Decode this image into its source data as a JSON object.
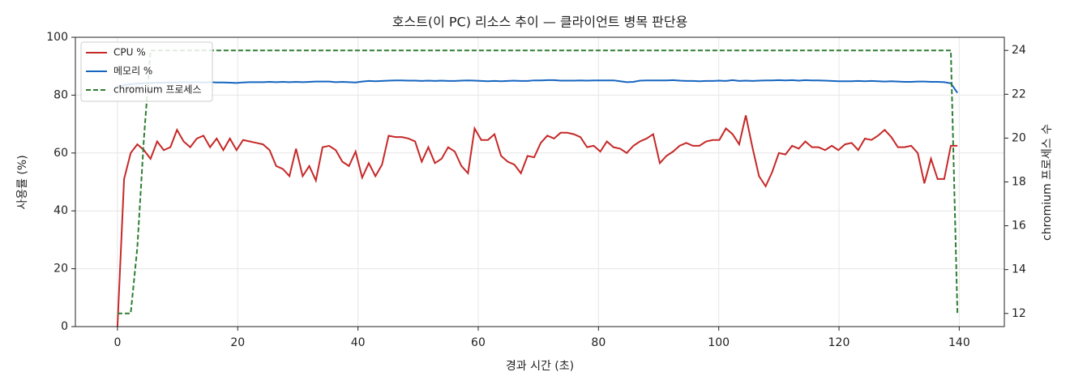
{
  "chart_data": {
    "type": "line",
    "title": "호스트(이 PC) 리소스 추이 — 클라이언트 병목 판단용",
    "x_label": "경과 시간 (초)",
    "y_label": "사용률 (%)",
    "y2_label": "chromium 프로세스 수",
    "x": [
      0,
      1.1,
      2.2,
      3.3,
      4.4,
      5.5,
      6.6,
      7.7,
      8.8,
      9.9,
      11,
      12.1,
      13.2,
      14.3,
      15.4,
      16.5,
      17.6,
      18.7,
      19.8,
      20.9,
      22,
      23.1,
      24.2,
      25.3,
      26.4,
      27.5,
      28.6,
      29.7,
      30.8,
      31.9,
      33,
      34.1,
      35.2,
      36.3,
      37.4,
      38.5,
      39.6,
      40.7,
      41.8,
      42.9,
      44,
      45.1,
      46.2,
      47.3,
      48.4,
      49.5,
      50.6,
      51.7,
      52.8,
      53.9,
      55,
      56.1,
      57.2,
      58.3,
      59.4,
      60.5,
      61.6,
      62.7,
      63.8,
      64.9,
      66,
      67.1,
      68.2,
      69.3,
      70.4,
      71.5,
      72.6,
      73.7,
      74.8,
      75.9,
      77,
      78.1,
      79.2,
      80.3,
      81.4,
      82.5,
      83.6,
      84.7,
      85.8,
      86.9,
      88,
      89.1,
      90.2,
      91.3,
      92.4,
      93.5,
      94.6,
      95.7,
      96.8,
      97.9,
      99,
      100.1,
      101.2,
      102.3,
      103.4,
      104.5,
      105.6,
      106.7,
      107.8,
      108.9,
      110,
      111.1,
      112.2,
      113.3,
      114.4,
      115.5,
      116.6,
      117.7,
      118.8,
      119.9,
      121,
      122.1,
      123.2,
      124.3,
      125.4,
      126.5,
      127.6,
      128.7,
      129.8,
      130.9,
      132,
      133.1,
      134.2,
      135.3,
      136.4,
      137.5,
      138.6,
      139.7
    ],
    "series": [
      {
        "name": "CPU %",
        "color": "#c62828",
        "dashed": false,
        "axis": "y",
        "values": [
          0,
          51,
          60,
          63,
          61,
          58,
          64,
          61,
          62,
          68,
          64,
          62,
          65,
          66,
          62,
          65,
          61,
          65,
          61,
          64.5,
          64,
          63.5,
          63,
          61,
          55.5,
          54.5,
          52,
          61.5,
          52,
          55.5,
          50.5,
          62,
          62.5,
          61,
          57,
          55.5,
          60.5,
          51.5,
          56.5,
          52,
          56,
          66,
          65.5,
          65.5,
          65,
          64,
          57,
          62,
          56.5,
          58,
          62,
          60.5,
          55.5,
          53,
          68.5,
          64.5,
          64.5,
          66.5,
          59,
          57,
          56,
          53,
          59,
          58.5,
          63.5,
          66,
          65,
          67,
          67,
          66.5,
          65.5,
          62,
          62.5,
          60.5,
          64,
          62,
          61.5,
          60,
          62.5,
          64,
          65,
          66.5,
          56.5,
          59,
          60.5,
          62.5,
          63.5,
          62.5,
          62.5,
          64,
          64.5,
          64.5,
          68.5,
          66.5,
          63,
          73,
          62,
          52,
          48.5,
          53.5,
          60,
          59.5,
          62.5,
          61.5,
          64,
          62,
          62,
          61,
          62.5,
          61,
          63,
          63.5,
          61,
          65,
          64.5,
          66,
          68,
          65.5,
          62,
          62,
          62.5,
          60,
          49.5,
          58,
          51,
          51,
          62.5,
          62.5
        ]
      },
      {
        "name": "메모리 %",
        "color": "#1565c0",
        "dashed": false,
        "axis": "y",
        "values": [
          83,
          83.5,
          83.8,
          84,
          84.1,
          84.2,
          84.3,
          84.3,
          84.4,
          84.4,
          84.5,
          84.4,
          84.5,
          84.4,
          84.5,
          84.4,
          84.4,
          84.3,
          84.2,
          84.4,
          84.5,
          84.5,
          84.5,
          84.6,
          84.5,
          84.6,
          84.5,
          84.6,
          84.5,
          84.6,
          84.7,
          84.7,
          84.7,
          84.5,
          84.6,
          84.5,
          84.4,
          84.7,
          84.9,
          84.8,
          84.9,
          85,
          85.1,
          85.1,
          85,
          85,
          84.9,
          85,
          84.9,
          85,
          84.9,
          84.9,
          85,
          85.1,
          85,
          84.9,
          84.8,
          84.9,
          84.8,
          84.9,
          85,
          84.9,
          84.9,
          85.1,
          85.1,
          85.2,
          85.2,
          85,
          85,
          85,
          85.1,
          85,
          85.1,
          85.1,
          85.1,
          85.1,
          84.8,
          84.5,
          84.6,
          85,
          85.1,
          85.1,
          85.1,
          85.1,
          85.2,
          85,
          84.9,
          84.9,
          84.8,
          84.9,
          84.9,
          85,
          84.9,
          85.2,
          84.9,
          85,
          84.9,
          85,
          85.1,
          85.1,
          85.2,
          85.1,
          85.2,
          85,
          85.2,
          85.1,
          85.1,
          85,
          84.9,
          84.8,
          84.8,
          84.8,
          84.9,
          84.8,
          84.9,
          84.8,
          84.7,
          84.8,
          84.7,
          84.6,
          84.6,
          84.7,
          84.7,
          84.6,
          84.6,
          84.5,
          84.1,
          80.8
        ]
      },
      {
        "name": "chromium 프로세스",
        "color": "#2e7d32",
        "dashed": true,
        "axis": "y2",
        "values": [
          12,
          12,
          12,
          15,
          20,
          24,
          24,
          24,
          24,
          24,
          24,
          24,
          24,
          24,
          24,
          24,
          24,
          24,
          24,
          24,
          24,
          24,
          24,
          24,
          24,
          24,
          24,
          24,
          24,
          24,
          24,
          24,
          24,
          24,
          24,
          24,
          24,
          24,
          24,
          24,
          24,
          24,
          24,
          24,
          24,
          24,
          24,
          24,
          24,
          24,
          24,
          24,
          24,
          24,
          24,
          24,
          24,
          24,
          24,
          24,
          24,
          24,
          24,
          24,
          24,
          24,
          24,
          24,
          24,
          24,
          24,
          24,
          24,
          24,
          24,
          24,
          24,
          24,
          24,
          24,
          24,
          24,
          24,
          24,
          24,
          24,
          24,
          24,
          24,
          24,
          24,
          24,
          24,
          24,
          24,
          24,
          24,
          24,
          24,
          24,
          24,
          24,
          24,
          24,
          24,
          24,
          24,
          24,
          24,
          24,
          24,
          24,
          24,
          24,
          24,
          24,
          24,
          24,
          24,
          24,
          24,
          24,
          24,
          24,
          24,
          24,
          24,
          12
        ]
      }
    ],
    "xlim": [
      -7,
      147.5
    ],
    "xticks": [
      0,
      20,
      40,
      60,
      80,
      100,
      120,
      140
    ],
    "ylim": [
      0,
      100
    ],
    "yticks": [
      0,
      20,
      40,
      60,
      80,
      100
    ],
    "y2lim": [
      11.4,
      24.6
    ],
    "y2ticks": [
      12,
      14,
      16,
      18,
      20,
      22,
      24
    ],
    "grid": true,
    "legend": "upper-left"
  }
}
